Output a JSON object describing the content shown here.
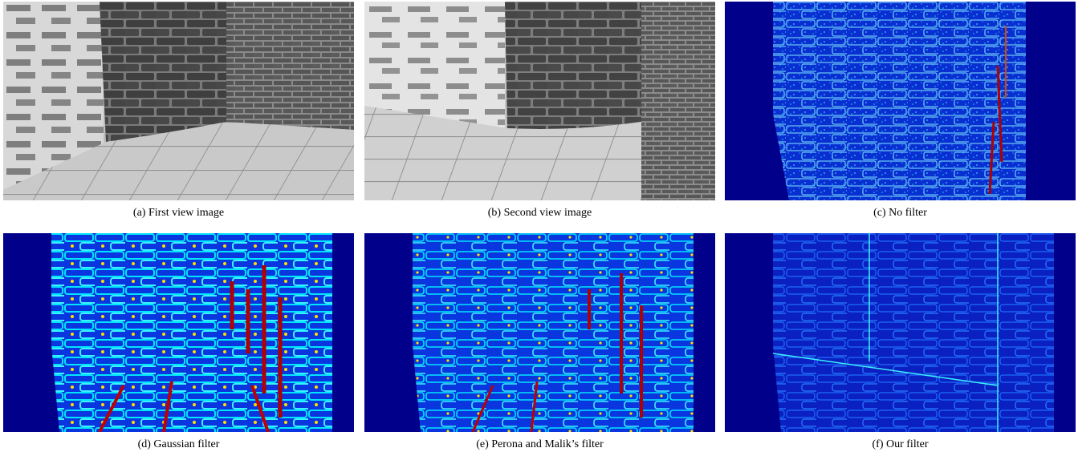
{
  "figure": {
    "panels": [
      {
        "id": "a",
        "caption": "(a) First view image"
      },
      {
        "id": "b",
        "caption": "(b) Second view image"
      },
      {
        "id": "c",
        "caption": "(c) No filter"
      },
      {
        "id": "d",
        "caption": "(d) Gaussian filter"
      },
      {
        "id": "e",
        "caption": "(e) Perona and Malik’s filter"
      },
      {
        "id": "f",
        "caption": "(f) Our filter"
      }
    ],
    "colors": {
      "error_background": "#00008b",
      "error_low": "#0a3cff",
      "error_mid": "#00e5ff",
      "error_high": "#b00000",
      "grayscale_light": "#e6e6e6",
      "grayscale_brick": "#5a5a5a"
    }
  }
}
